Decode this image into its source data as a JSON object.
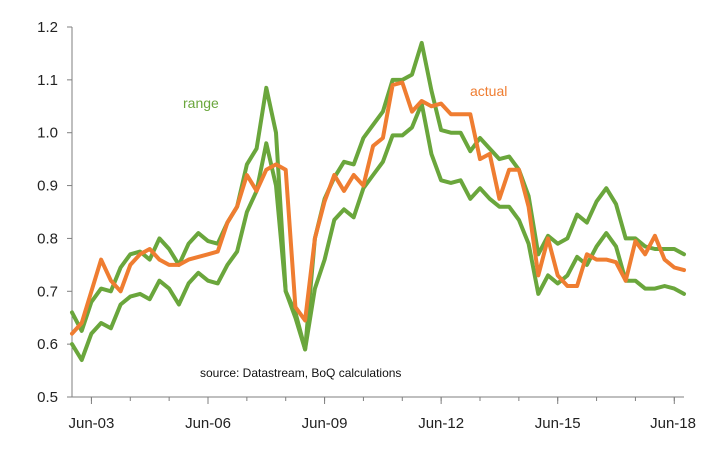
{
  "chart_data": {
    "type": "line",
    "title": "",
    "xlabel": "",
    "ylabel": "",
    "x_ticks": [
      "Jun-03",
      "Jun-06",
      "Jun-09",
      "Jun-12",
      "Jun-15",
      "Jun-18"
    ],
    "y_ticks": [
      "0.5",
      "0.6",
      "0.7",
      "0.8",
      "0.9",
      "1.0",
      "1.1",
      "1.2"
    ],
    "xlim": [
      2003.0,
      2018.75
    ],
    "ylim": [
      0.5,
      1.2
    ],
    "grid": false,
    "legend": "none",
    "annotations": {
      "range_label": "range",
      "actual_label": "actual",
      "source": "source:  Datastream, BoQ calculations"
    },
    "colors": {
      "range": "#6aa63c",
      "actual": "#ef7d31",
      "axis": "#7f7f7f"
    },
    "x": [
      2003.0,
      2003.25,
      2003.5,
      2003.75,
      2004.0,
      2004.25,
      2004.5,
      2004.75,
      2005.0,
      2005.25,
      2005.5,
      2005.75,
      2006.0,
      2006.25,
      2006.5,
      2006.75,
      2007.0,
      2007.25,
      2007.5,
      2007.75,
      2008.0,
      2008.25,
      2008.5,
      2008.75,
      2009.0,
      2009.25,
      2009.5,
      2009.75,
      2010.0,
      2010.25,
      2010.5,
      2010.75,
      2011.0,
      2011.25,
      2011.5,
      2011.75,
      2012.0,
      2012.25,
      2012.5,
      2012.75,
      2013.0,
      2013.25,
      2013.5,
      2013.75,
      2014.0,
      2014.25,
      2014.5,
      2014.75,
      2015.0,
      2015.25,
      2015.5,
      2015.75,
      2016.0,
      2016.25,
      2016.5,
      2016.75,
      2017.0,
      2017.25,
      2017.5,
      2017.75,
      2018.0,
      2018.25,
      2018.5,
      2018.75
    ],
    "series": [
      {
        "key": "actual",
        "values": [
          0.62,
          0.64,
          0.7,
          0.76,
          0.72,
          0.7,
          0.75,
          0.77,
          0.78,
          0.76,
          0.75,
          0.75,
          0.76,
          0.765,
          0.77,
          0.775,
          0.83,
          0.86,
          0.92,
          0.89,
          0.93,
          0.94,
          0.93,
          0.67,
          0.645,
          0.8,
          0.87,
          0.92,
          0.89,
          0.92,
          0.9,
          0.975,
          0.99,
          1.09,
          1.095,
          1.04,
          1.06,
          1.05,
          1.055,
          1.035,
          1.035,
          1.035,
          0.95,
          0.96,
          0.875,
          0.93,
          0.93,
          0.86,
          0.73,
          0.8,
          0.73,
          0.71,
          0.71,
          0.77,
          0.76,
          0.76,
          0.755,
          0.72,
          0.795,
          0.77,
          0.805,
          0.76,
          0.745,
          0.74
        ]
      },
      {
        "key": "range_upper",
        "values": [
          0.66,
          0.625,
          0.68,
          0.705,
          0.7,
          0.745,
          0.77,
          0.775,
          0.76,
          0.8,
          0.78,
          0.75,
          0.79,
          0.81,
          0.795,
          0.79,
          0.83,
          0.86,
          0.94,
          0.97,
          1.085,
          1.0,
          0.7,
          0.65,
          0.59,
          0.8,
          0.875,
          0.915,
          0.945,
          0.94,
          0.99,
          1.015,
          1.04,
          1.1,
          1.1,
          1.11,
          1.17,
          1.08,
          1.005,
          1.0,
          1.0,
          0.965,
          0.99,
          0.97,
          0.95,
          0.955,
          0.93,
          0.88,
          0.77,
          0.805,
          0.79,
          0.8,
          0.845,
          0.83,
          0.87,
          0.895,
          0.865,
          0.8,
          0.8,
          0.785,
          0.78,
          0.78,
          0.78,
          0.77
        ]
      },
      {
        "key": "range_lower",
        "values": [
          0.6,
          0.57,
          0.62,
          0.64,
          0.63,
          0.675,
          0.69,
          0.695,
          0.685,
          0.72,
          0.705,
          0.675,
          0.715,
          0.735,
          0.72,
          0.715,
          0.75,
          0.775,
          0.85,
          0.89,
          0.98,
          0.9,
          0.7,
          0.66,
          0.59,
          0.705,
          0.76,
          0.835,
          0.855,
          0.84,
          0.895,
          0.92,
          0.945,
          0.995,
          0.995,
          1.01,
          1.055,
          0.96,
          0.91,
          0.905,
          0.91,
          0.875,
          0.895,
          0.875,
          0.86,
          0.86,
          0.835,
          0.79,
          0.695,
          0.73,
          0.715,
          0.73,
          0.765,
          0.75,
          0.785,
          0.81,
          0.785,
          0.72,
          0.72,
          0.705,
          0.705,
          0.71,
          0.705,
          0.695
        ]
      }
    ]
  }
}
